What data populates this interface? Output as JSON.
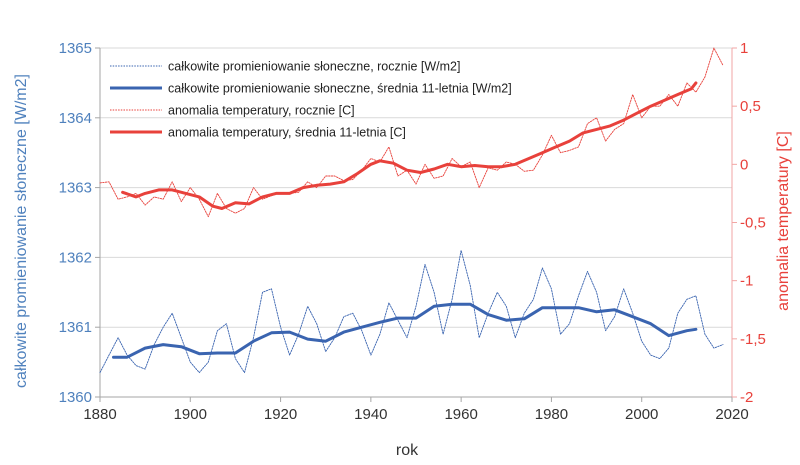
{
  "chart_data": {
    "type": "line",
    "title": "",
    "xlabel": "rok",
    "ylabel_left": "całkowite promieniowanie słoneczne [W/m2]",
    "ylabel_right": "anomalia temperatury [C]",
    "xlim": [
      1880,
      2020
    ],
    "ylim_left": [
      1360,
      1365
    ],
    "ylim_right": [
      -2,
      1
    ],
    "x_ticks": [
      "1880",
      "1900",
      "1920",
      "1940",
      "1960",
      "1980",
      "2000",
      "2020"
    ],
    "y_left_ticks": [
      "1360",
      "1361",
      "1362",
      "1363",
      "1364",
      "1365"
    ],
    "y_right_ticks": [
      "-2",
      "-1,5",
      "-1",
      "-0,5",
      "0",
      "0,5",
      "1"
    ],
    "grid": "horizontal",
    "legend_position": "top-left",
    "colors": {
      "tsi": "#3a64b0",
      "temp": "#e8413b",
      "axis_left": "#4f81bd",
      "axis_right": "#e8413b"
    },
    "series": [
      {
        "name": "całkowite promieniowanie słoneczne, rocznie [W/m2]",
        "axis": "left",
        "style": "dotted",
        "x": [
          1880,
          1882,
          1884,
          1886,
          1888,
          1890,
          1892,
          1894,
          1896,
          1898,
          1900,
          1902,
          1904,
          1906,
          1908,
          1910,
          1912,
          1914,
          1916,
          1918,
          1920,
          1922,
          1924,
          1926,
          1928,
          1930,
          1932,
          1934,
          1936,
          1938,
          1940,
          1942,
          1944,
          1946,
          1948,
          1950,
          1952,
          1954,
          1956,
          1958,
          1960,
          1962,
          1964,
          1966,
          1968,
          1970,
          1972,
          1974,
          1976,
          1978,
          1980,
          1982,
          1984,
          1986,
          1988,
          1990,
          1992,
          1994,
          1996,
          1998,
          2000,
          2002,
          2004,
          2006,
          2008,
          2010,
          2012,
          2014,
          2016,
          2018
        ],
        "values": [
          1360.35,
          1360.6,
          1360.85,
          1360.6,
          1360.45,
          1360.4,
          1360.75,
          1361.0,
          1361.2,
          1360.85,
          1360.5,
          1360.35,
          1360.5,
          1360.95,
          1361.05,
          1360.55,
          1360.35,
          1360.85,
          1361.5,
          1361.55,
          1361.0,
          1360.6,
          1360.9,
          1361.3,
          1361.05,
          1360.65,
          1360.85,
          1361.15,
          1361.2,
          1360.95,
          1360.6,
          1360.9,
          1361.35,
          1361.1,
          1360.85,
          1361.3,
          1361.9,
          1361.5,
          1360.9,
          1361.4,
          1362.1,
          1361.6,
          1360.85,
          1361.2,
          1361.5,
          1361.3,
          1360.85,
          1361.2,
          1361.4,
          1361.85,
          1361.55,
          1360.9,
          1361.05,
          1361.45,
          1361.8,
          1361.5,
          1360.95,
          1361.15,
          1361.55,
          1361.2,
          1360.8,
          1360.6,
          1360.55,
          1360.7,
          1361.2,
          1361.4,
          1361.45,
          1360.9,
          1360.7,
          1360.75
        ]
      },
      {
        "name": "całkowite promieniowanie słoneczne, średnia 11-letnia [W/m2]",
        "axis": "left",
        "style": "solid-thick",
        "x": [
          1883,
          1886,
          1890,
          1894,
          1898,
          1902,
          1906,
          1910,
          1914,
          1918,
          1922,
          1926,
          1930,
          1934,
          1938,
          1942,
          1946,
          1950,
          1954,
          1958,
          1962,
          1966,
          1970,
          1974,
          1978,
          1982,
          1986,
          1990,
          1994,
          1998,
          2002,
          2006,
          2010,
          2012
        ],
        "values": [
          1360.57,
          1360.57,
          1360.7,
          1360.75,
          1360.72,
          1360.62,
          1360.63,
          1360.63,
          1360.8,
          1360.92,
          1360.93,
          1360.83,
          1360.8,
          1360.93,
          1361.0,
          1361.07,
          1361.13,
          1361.13,
          1361.3,
          1361.33,
          1361.33,
          1361.18,
          1361.1,
          1361.12,
          1361.28,
          1361.28,
          1361.28,
          1361.22,
          1361.25,
          1361.15,
          1361.05,
          1360.88,
          1360.95,
          1360.97
        ]
      },
      {
        "name": "anomalia temperatury, rocznie [C]",
        "axis": "right",
        "style": "dotted",
        "x": [
          1880,
          1882,
          1884,
          1886,
          1888,
          1890,
          1892,
          1894,
          1896,
          1898,
          1900,
          1902,
          1904,
          1906,
          1908,
          1910,
          1912,
          1914,
          1916,
          1918,
          1920,
          1922,
          1924,
          1926,
          1928,
          1930,
          1932,
          1934,
          1936,
          1938,
          1940,
          1942,
          1944,
          1946,
          1948,
          1950,
          1952,
          1954,
          1956,
          1958,
          1960,
          1962,
          1964,
          1966,
          1968,
          1970,
          1972,
          1974,
          1976,
          1978,
          1980,
          1982,
          1984,
          1986,
          1988,
          1990,
          1992,
          1994,
          1996,
          1998,
          2000,
          2002,
          2004,
          2006,
          2008,
          2010,
          2012,
          2014,
          2016,
          2018
        ],
        "values": [
          -0.16,
          -0.15,
          -0.3,
          -0.28,
          -0.25,
          -0.35,
          -0.28,
          -0.3,
          -0.15,
          -0.32,
          -0.2,
          -0.3,
          -0.45,
          -0.25,
          -0.38,
          -0.42,
          -0.38,
          -0.2,
          -0.3,
          -0.27,
          -0.24,
          -0.25,
          -0.24,
          -0.15,
          -0.2,
          -0.1,
          -0.1,
          -0.14,
          -0.13,
          -0.05,
          0.05,
          0.02,
          0.15,
          -0.1,
          -0.05,
          -0.17,
          0.0,
          -0.12,
          -0.1,
          0.05,
          -0.02,
          0.02,
          -0.2,
          -0.03,
          -0.05,
          0.02,
          0.0,
          -0.06,
          -0.05,
          0.08,
          0.25,
          0.1,
          0.12,
          0.15,
          0.35,
          0.4,
          0.2,
          0.3,
          0.35,
          0.6,
          0.4,
          0.5,
          0.5,
          0.6,
          0.5,
          0.7,
          0.62,
          0.75,
          1.0,
          0.85
        ]
      },
      {
        "name": "anomalia temperatury, średnia 11-letnia [C]",
        "axis": "right",
        "style": "solid-thick",
        "x": [
          1885,
          1888,
          1890,
          1893,
          1896,
          1899,
          1902,
          1905,
          1907,
          1910,
          1913,
          1916,
          1919,
          1922,
          1925,
          1928,
          1931,
          1934,
          1937,
          1940,
          1942,
          1945,
          1948,
          1951,
          1954,
          1957,
          1960,
          1963,
          1966,
          1969,
          1972,
          1975,
          1978,
          1981,
          1984,
          1987,
          1990,
          1993,
          1996,
          1999,
          2002,
          2005,
          2008,
          2011,
          2012
        ],
        "values": [
          -0.24,
          -0.28,
          -0.25,
          -0.22,
          -0.22,
          -0.25,
          -0.28,
          -0.36,
          -0.38,
          -0.33,
          -0.34,
          -0.28,
          -0.25,
          -0.25,
          -0.2,
          -0.18,
          -0.17,
          -0.15,
          -0.08,
          0.0,
          0.03,
          0.01,
          -0.05,
          -0.07,
          -0.04,
          0.0,
          -0.02,
          -0.01,
          -0.02,
          -0.02,
          0.0,
          0.05,
          0.1,
          0.15,
          0.2,
          0.27,
          0.3,
          0.33,
          0.38,
          0.44,
          0.5,
          0.55,
          0.6,
          0.65,
          0.7
        ]
      }
    ]
  }
}
